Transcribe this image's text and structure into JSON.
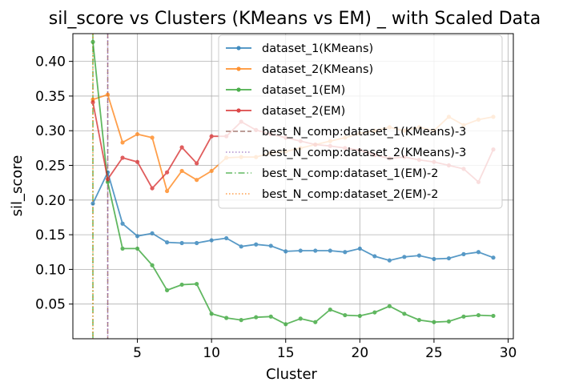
{
  "chart_data": {
    "type": "line",
    "title": "sil_score vs Clusters (KMeans vs EM) _ with Scaled Data",
    "xlabel": "Cluster",
    "ylabel": "sil_score",
    "xlim": [
      0.65,
      30.35
    ],
    "ylim": [
      0,
      0.44
    ],
    "xticks": [
      5,
      10,
      15,
      20,
      25,
      30
    ],
    "yticks": [
      0.05,
      0.1,
      0.15,
      0.2,
      0.25,
      0.3,
      0.35,
      0.4
    ],
    "grid": true,
    "legend_position": "top-right",
    "x": [
      2,
      3,
      4,
      5,
      6,
      7,
      8,
      9,
      10,
      11,
      12,
      13,
      14,
      15,
      16,
      17,
      18,
      19,
      20,
      21,
      22,
      23,
      24,
      25,
      26,
      27,
      28,
      29
    ],
    "series": [
      {
        "name": "dataset_1(KMeans)",
        "color": "#1f77b4",
        "values": [
          0.195,
          0.24,
          0.166,
          0.148,
          0.152,
          0.139,
          0.138,
          0.138,
          0.142,
          0.145,
          0.133,
          0.136,
          0.134,
          0.126,
          0.127,
          0.127,
          0.127,
          0.125,
          0.13,
          0.119,
          0.113,
          0.118,
          0.12,
          0.115,
          0.116,
          0.122,
          0.125,
          0.117
        ]
      },
      {
        "name": "dataset_2(KMeans)",
        "color": "#ff7f0e",
        "values": [
          0.345,
          0.352,
          0.283,
          0.295,
          0.29,
          0.213,
          0.242,
          0.229,
          0.242,
          0.261,
          0.262,
          0.262,
          0.268,
          0.27,
          0.275,
          0.28,
          0.285,
          0.29,
          0.296,
          0.3,
          0.305,
          0.3,
          0.305,
          0.3,
          0.32,
          0.308,
          0.316,
          0.32
        ]
      },
      {
        "name": "dataset_1(EM)",
        "color": "#2ca02c",
        "values": [
          0.428,
          0.226,
          0.13,
          0.13,
          0.106,
          0.07,
          0.078,
          0.079,
          0.036,
          0.03,
          0.027,
          0.031,
          0.032,
          0.021,
          0.029,
          0.024,
          0.042,
          0.034,
          0.033,
          0.038,
          0.047,
          0.036,
          0.027,
          0.024,
          0.025,
          0.032,
          0.034,
          0.033
        ]
      },
      {
        "name": "dataset_2(EM)",
        "color": "#d62728",
        "values": [
          0.341,
          0.23,
          0.261,
          0.255,
          0.217,
          0.24,
          0.276,
          0.253,
          0.292,
          0.292,
          0.313,
          0.301,
          0.295,
          0.29,
          0.285,
          0.28,
          0.278,
          0.275,
          0.272,
          0.265,
          0.26,
          0.262,
          0.258,
          0.255,
          0.25,
          0.245,
          0.226,
          0.273
        ]
      }
    ],
    "vlines": [
      {
        "name": "best_N_comp:dataset_1(KMeans)-3",
        "x": 3,
        "color": "#8c564b",
        "style": "dashed"
      },
      {
        "name": "best_N_comp:dataset_2(KMeans)-3",
        "x": 3,
        "color": "#9467bd",
        "style": "dotted"
      },
      {
        "name": "best_N_comp:dataset_1(EM)-2",
        "x": 2,
        "color": "#2ca02c",
        "style": "dashdot"
      },
      {
        "name": "best_N_comp:dataset_2(EM)-2",
        "x": 2,
        "color": "#ff7f0e",
        "style": "dotted"
      }
    ]
  }
}
